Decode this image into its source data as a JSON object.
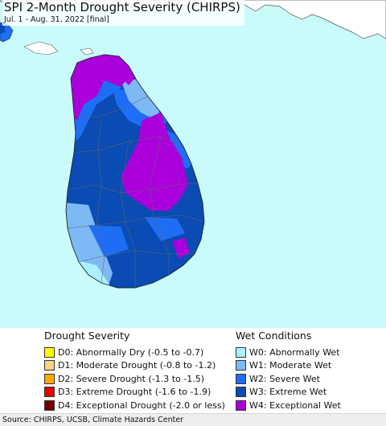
{
  "title": "SPI 2-Month Drought Severity (CHIRPS)",
  "subtitle": "Jul. 1 - Aug. 31, 2022 [final]",
  "legend": {
    "drought": {
      "heading": "Drought Severity",
      "items": [
        {
          "label": "D0: Abnormally Dry (-0.5 to -0.7)",
          "color": "#ffff00"
        },
        {
          "label": "D1: Moderate Drought (-0.8 to -1.2)",
          "color": "#fcd37f"
        },
        {
          "label": "D2: Severe Drought (-1.3 to -1.5)",
          "color": "#ffaa00"
        },
        {
          "label": "D3: Extreme Drought (-1.6 to -1.9)",
          "color": "#e60000"
        },
        {
          "label": "D4: Exceptional Drought (-2.0 or less)",
          "color": "#730000"
        }
      ]
    },
    "wet": {
      "heading": "Wet Conditions",
      "items": [
        {
          "label": "W0: Abnormally Wet",
          "color": "#aaf0ff"
        },
        {
          "label": "W1: Moderate Wet",
          "color": "#7db9f5"
        },
        {
          "label": "W2: Severe Wet",
          "color": "#1e6ef5"
        },
        {
          "label": "W3: Extreme Wet",
          "color": "#0a4bb4"
        },
        {
          "label": "W4: Exceptional Wet",
          "color": "#aa00dc"
        }
      ]
    }
  },
  "source": "Source: CHIRPS, UCSB, Climate Hazards Center",
  "colors": {
    "water": "#c9fbfb",
    "no_data_land": "#ffffff",
    "boundary": "#666666"
  }
}
